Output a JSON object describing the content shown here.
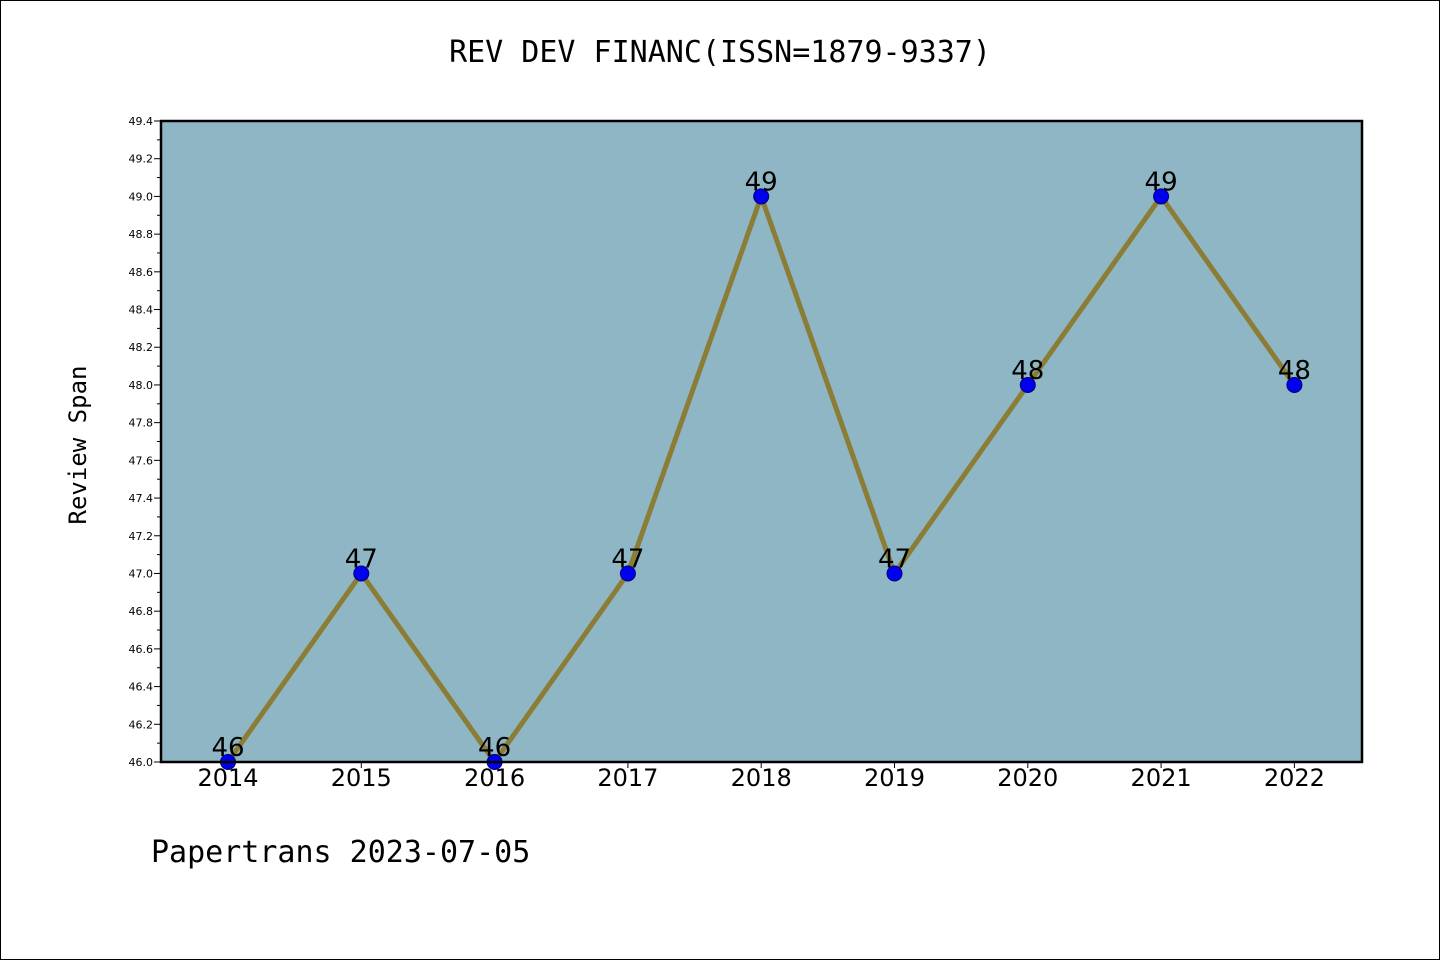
{
  "footer_text": "Papertrans 2023-07-05",
  "chart_data": {
    "type": "line",
    "title": "REV DEV FINANC(ISSN=1879-9337)",
    "ylabel": "Review Span",
    "xlabel": "",
    "x": [
      "2014",
      "2015",
      "2016",
      "2017",
      "2018",
      "2019",
      "2020",
      "2021",
      "2022"
    ],
    "series": [
      {
        "values": [
          46,
          47,
          46,
          47,
          49,
          47,
          48,
          49,
          48
        ],
        "data_labels": [
          "46",
          "47",
          "46",
          "47",
          "49",
          "47",
          "48",
          "49",
          "48"
        ]
      }
    ],
    "ylim": [
      46.0,
      49.4
    ],
    "yticks": [
      "46.0",
      "46.2",
      "46.4",
      "46.6",
      "46.8",
      "47.0",
      "47.2",
      "47.4",
      "47.6",
      "47.8",
      "48.0",
      "48.2",
      "48.4",
      "48.6",
      "48.8",
      "49.0",
      "49.2",
      "49.4"
    ],
    "grid": false,
    "colors": {
      "plot_background": "#8fb6c4",
      "line": "#8b7d35",
      "marker": "#0000ee",
      "marker_edge": "#000080"
    }
  }
}
